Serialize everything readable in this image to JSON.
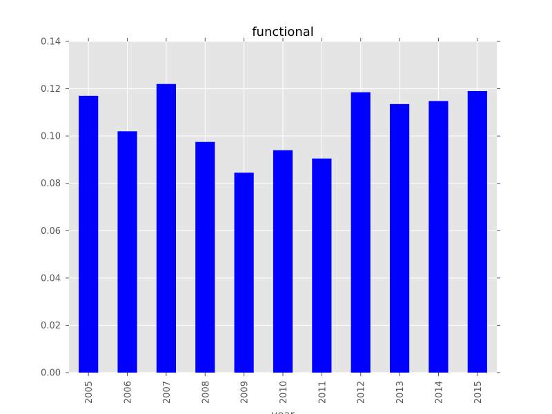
{
  "chart_data": {
    "type": "bar",
    "title": "functional",
    "xlabel": "year",
    "ylabel": "",
    "categories": [
      "2005",
      "2006",
      "2007",
      "2008",
      "2009",
      "2010",
      "2011",
      "2012",
      "2013",
      "2014",
      "2015"
    ],
    "values": [
      0.117,
      0.102,
      0.122,
      0.0975,
      0.0845,
      0.094,
      0.0905,
      0.1185,
      0.1135,
      0.1148,
      0.119
    ],
    "ylim": [
      0,
      0.14
    ],
    "yticks": [
      "0.00",
      "0.02",
      "0.04",
      "0.06",
      "0.08",
      "0.10",
      "0.12",
      "0.14"
    ],
    "grid": true,
    "legend": "none",
    "colors": {
      "bar": "#0000ff",
      "plot_background": "#e5e5e5",
      "grid": "#ffffff",
      "text": "#555555"
    }
  }
}
